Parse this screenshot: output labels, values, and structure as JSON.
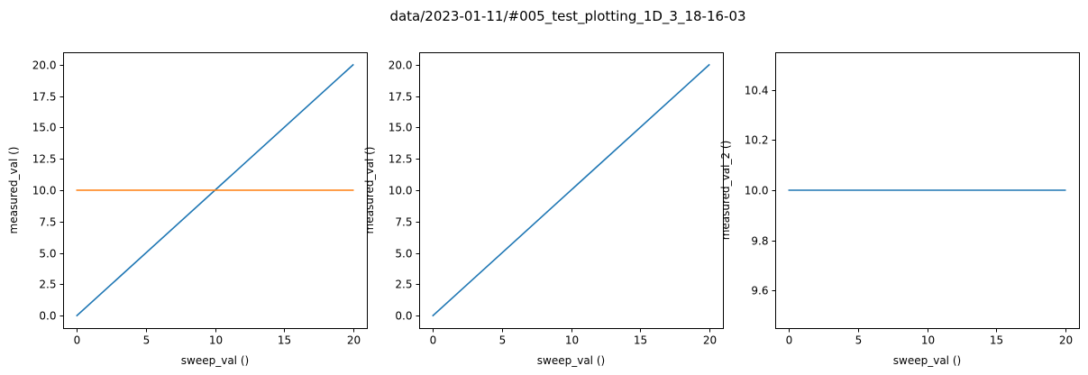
{
  "figure": {
    "title": "data/2023-01-11/#005_test_plotting_1D_3_18-16-03"
  },
  "chart_data": [
    {
      "type": "line",
      "xlabel": "sweep_val ()",
      "ylabel": "measured_val ()",
      "xlim": [
        -1,
        21
      ],
      "ylim": [
        -1,
        21
      ],
      "xticks": [
        0,
        5,
        10,
        15,
        20
      ],
      "xtick_labels": [
        "0",
        "5",
        "10",
        "15",
        "20"
      ],
      "yticks": [
        0,
        2.5,
        5,
        7.5,
        10,
        12.5,
        15,
        17.5,
        20
      ],
      "ytick_labels": [
        "0.0",
        "2.5",
        "5.0",
        "7.5",
        "10.0",
        "12.5",
        "15.0",
        "17.5",
        "20.0"
      ],
      "grid": false,
      "series": [
        {
          "color": "#1f77b4",
          "x": [
            0,
            20
          ],
          "y": [
            0,
            20
          ]
        },
        {
          "color": "#ff7f0e",
          "x": [
            0,
            20
          ],
          "y": [
            10,
            10
          ]
        }
      ]
    },
    {
      "type": "line",
      "xlabel": "sweep_val ()",
      "ylabel": "measured_val ()",
      "xlim": [
        -1,
        21
      ],
      "ylim": [
        -1,
        21
      ],
      "xticks": [
        0,
        5,
        10,
        15,
        20
      ],
      "xtick_labels": [
        "0",
        "5",
        "10",
        "15",
        "20"
      ],
      "yticks": [
        0,
        2.5,
        5,
        7.5,
        10,
        12.5,
        15,
        17.5,
        20
      ],
      "ytick_labels": [
        "0.0",
        "2.5",
        "5.0",
        "7.5",
        "10.0",
        "12.5",
        "15.0",
        "17.5",
        "20.0"
      ],
      "grid": false,
      "series": [
        {
          "color": "#1f77b4",
          "x": [
            0,
            20
          ],
          "y": [
            0,
            20
          ]
        }
      ]
    },
    {
      "type": "line",
      "xlabel": "sweep_val ()",
      "ylabel": "measured_val_2 ()",
      "xlim": [
        -1,
        21
      ],
      "ylim": [
        9.45,
        10.55
      ],
      "xticks": [
        0,
        5,
        10,
        15,
        20
      ],
      "xtick_labels": [
        "0",
        "5",
        "10",
        "15",
        "20"
      ],
      "yticks": [
        9.6,
        9.8,
        10.0,
        10.2,
        10.4
      ],
      "ytick_labels": [
        "9.6",
        "9.8",
        "10.0",
        "10.2",
        "10.4"
      ],
      "grid": false,
      "series": [
        {
          "color": "#1f77b4",
          "x": [
            0,
            20
          ],
          "y": [
            10,
            10
          ]
        }
      ]
    }
  ]
}
